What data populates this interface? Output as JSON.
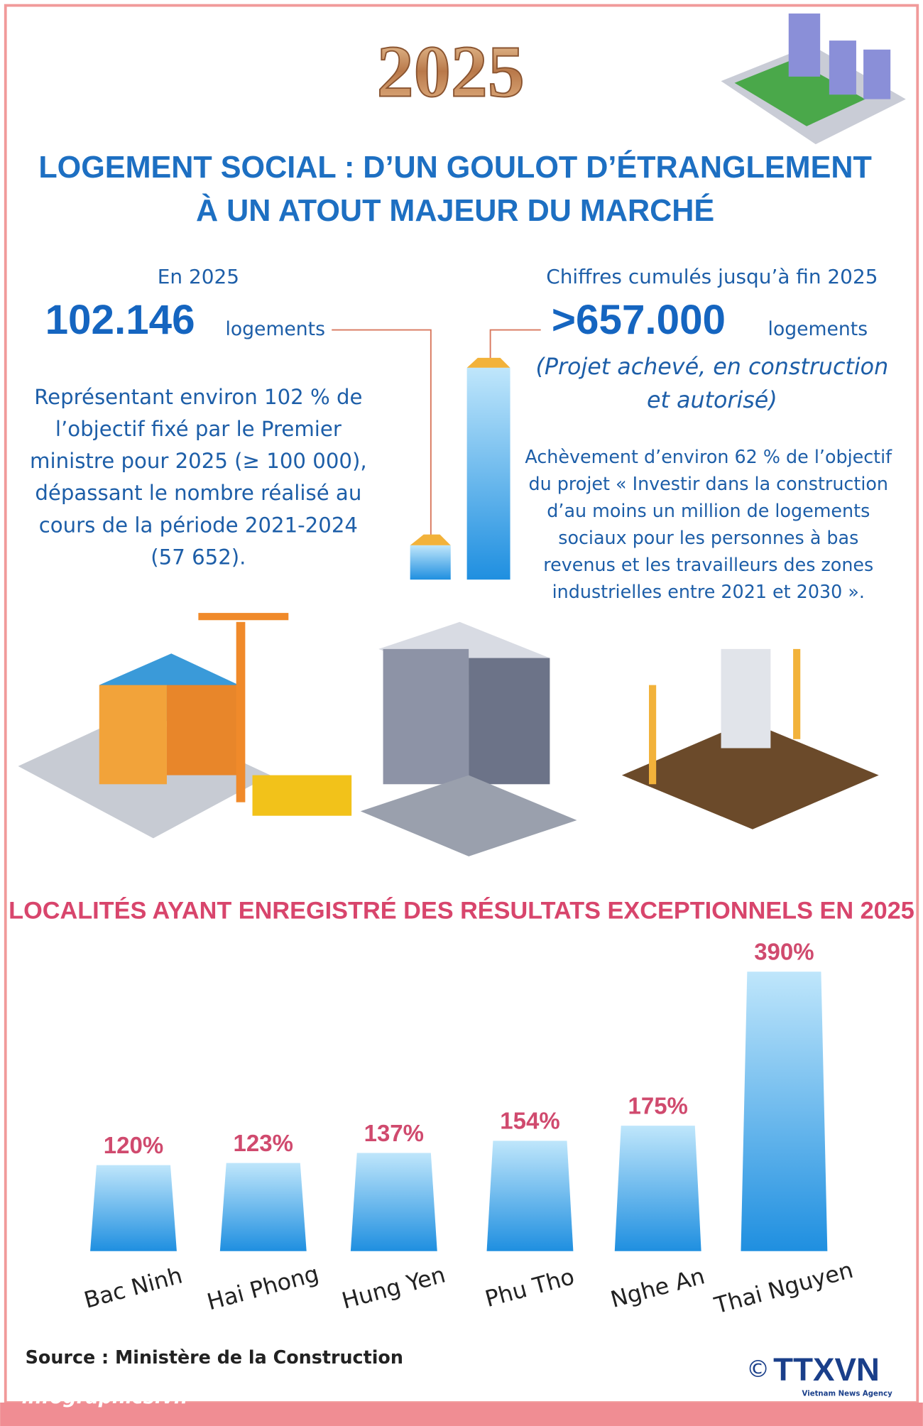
{
  "header": {
    "year": "2025",
    "title_lines": [
      "LOGEMENT SOCIAL : D’UN GOULOT D’ÉTRANGLEMENT",
      "À UN ATOUT MAJEUR DU MARCHÉ"
    ]
  },
  "left": {
    "label": "En 2025",
    "number": "102.146",
    "unit": "logements",
    "text_lines": [
      "Représentant environ 102 % de",
      "l’objectif fixé par le Premier",
      "ministre pour 2025 (≥ 100 000),",
      "dépassant le nombre réalisé au",
      "cours de la période 2021-2024",
      "(57 652)."
    ]
  },
  "right": {
    "label": "Chiffres cumulés jusqu’à fin 2025",
    "number": ">657.000",
    "unit": "logements",
    "note_lines": [
      "(Projet achevé, en construction",
      "et autorisé)"
    ],
    "text_lines": [
      "Achèvement d’environ 62 % de l’objectif",
      "du projet « Investir dans la construction",
      "d’au moins un million de logements",
      "sociaux pour les personnes à bas",
      "revenus et les travailleurs des zones",
      "industrielles entre 2021 et 2030 »."
    ]
  },
  "chart_data": {
    "type": "bar",
    "title": "LOCALITÉS AYANT ENREGISTRÉ DES RÉSULTATS EXCEPTIONNELS EN 2025",
    "categories": [
      "Bac Ninh",
      "Hai Phong",
      "Hung Yen",
      "Phu Tho",
      "Nghe An",
      "Thai Nguyen"
    ],
    "values": [
      120,
      123,
      137,
      154,
      175,
      390
    ],
    "value_labels": [
      "120%",
      "123%",
      "137%",
      "154%",
      "175%",
      "390%"
    ],
    "color": "#1f8fe0"
  },
  "footer": {
    "source": "Source : Ministère de la Construction",
    "site": "infographics.vn",
    "copyright": "©",
    "agency": "TTXVN",
    "agency_sub": "Vietnam News Agency"
  }
}
